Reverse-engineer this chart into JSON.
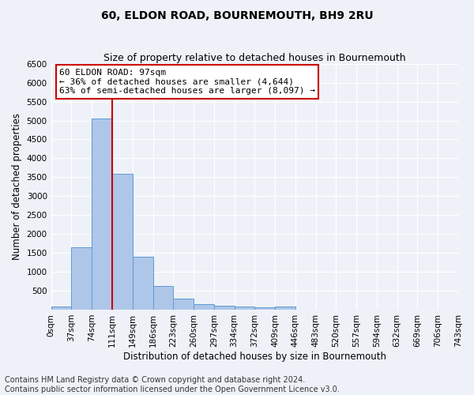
{
  "title": "60, ELDON ROAD, BOURNEMOUTH, BH9 2RU",
  "subtitle": "Size of property relative to detached houses in Bournemouth",
  "xlabel": "Distribution of detached houses by size in Bournemouth",
  "ylabel": "Number of detached properties",
  "bin_labels": [
    "0sqm",
    "37sqm",
    "74sqm",
    "111sqm",
    "149sqm",
    "186sqm",
    "223sqm",
    "260sqm",
    "297sqm",
    "334sqm",
    "372sqm",
    "409sqm",
    "446sqm",
    "483sqm",
    "520sqm",
    "557sqm",
    "594sqm",
    "632sqm",
    "669sqm",
    "706sqm",
    "743sqm"
  ],
  "bar_heights": [
    75,
    1650,
    5060,
    3590,
    1400,
    620,
    290,
    145,
    110,
    80,
    55,
    80,
    0,
    0,
    0,
    0,
    0,
    0,
    0,
    0
  ],
  "bar_color": "#aec6e8",
  "bar_edge_color": "#5b9bd5",
  "property_line_bin_idx": 2,
  "annotation_text": "60 ELDON ROAD: 97sqm\n← 36% of detached houses are smaller (4,644)\n63% of semi-detached houses are larger (8,097) →",
  "annotation_box_color": "#ffffff",
  "annotation_box_edge": "#cc0000",
  "property_line_color": "#cc0000",
  "ylim_max": 6500,
  "yticks": [
    0,
    500,
    1000,
    1500,
    2000,
    2500,
    3000,
    3500,
    4000,
    4500,
    5000,
    5500,
    6000,
    6500
  ],
  "footer_line1": "Contains HM Land Registry data © Crown copyright and database right 2024.",
  "footer_line2": "Contains public sector information licensed under the Open Government Licence v3.0.",
  "background_color": "#eef2f8",
  "grid_color": "#ffffff",
  "title_fontsize": 10,
  "subtitle_fontsize": 9,
  "axis_label_fontsize": 8.5,
  "tick_fontsize": 7.5,
  "footer_fontsize": 7,
  "annotation_fontsize": 8
}
